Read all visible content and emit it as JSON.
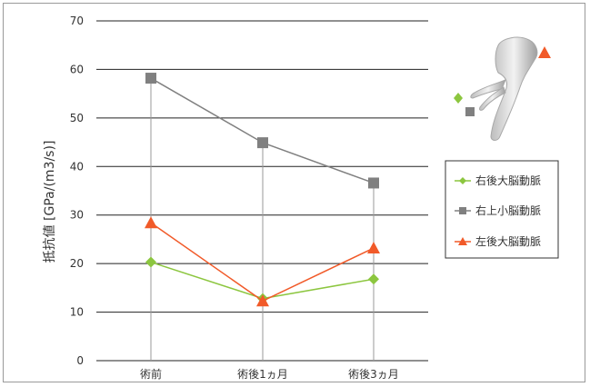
{
  "chart_data": {
    "type": "line",
    "categories": [
      "術前",
      "術後1ヵ月",
      "術後3ヵ月"
    ],
    "ylabel": "抵抗値 [GPa/(m3/s)]",
    "xlabel": "",
    "ylim": [
      0,
      70
    ],
    "yticks": [
      0,
      10,
      20,
      30,
      40,
      50,
      60,
      70
    ],
    "grid": true,
    "legend_position": "right",
    "series": [
      {
        "name": "右後大脳動脈",
        "values": [
          20.3,
          12.8,
          16.8
        ],
        "color": "#8cc63f",
        "marker": "diamond"
      },
      {
        "name": "右上小脳動脈",
        "values": [
          58.2,
          44.9,
          36.6
        ],
        "color": "#808080",
        "marker": "square"
      },
      {
        "name": "左後大脳動脈",
        "values": [
          28.4,
          12.3,
          23.2
        ],
        "color": "#f15a29",
        "marker": "triangle"
      }
    ]
  },
  "illustration": {
    "description_icon": "vessel-3d-model-icon",
    "markers": [
      "diamond",
      "square",
      "triangle"
    ]
  }
}
